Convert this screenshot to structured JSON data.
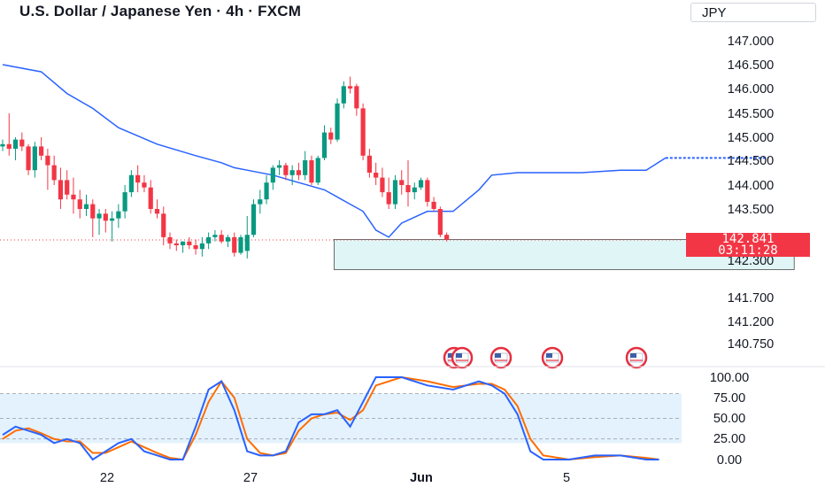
{
  "title": "U.S. Dollar / Japanese Yen · 4h · FXCM",
  "currency_selector": "JPY",
  "last_price": {
    "value": "142.841",
    "countdown": "03:11:28"
  },
  "colors": {
    "up": "#089981",
    "down": "#f23645",
    "trend_line": "#2962ff",
    "k_line": "#2962ff",
    "d_line": "#ff6d00",
    "zone_fill": "#e0f5f5",
    "band_fill": "#e3f2fd"
  },
  "chart_data": {
    "type": "candlestick",
    "price_axis": {
      "ticks": [
        "147.000",
        "146.500",
        "146.000",
        "145.500",
        "145.000",
        "144.500",
        "144.000",
        "143.500",
        "142.300",
        "141.700",
        "141.200",
        "140.750"
      ]
    },
    "x_axis": {
      "ticks": [
        "22",
        "27",
        "Jun",
        "5"
      ]
    },
    "candles": [
      [
        144.8,
        144.95,
        144.7,
        144.85
      ],
      [
        144.85,
        145.5,
        144.6,
        144.75
      ],
      [
        144.75,
        145.0,
        144.5,
        144.95
      ],
      [
        144.95,
        145.1,
        144.7,
        144.8
      ],
      [
        144.8,
        144.85,
        144.2,
        144.3
      ],
      [
        144.3,
        144.9,
        144.15,
        144.8
      ],
      [
        144.8,
        145.0,
        144.5,
        144.6
      ],
      [
        144.6,
        144.75,
        143.9,
        144.4
      ],
      [
        144.4,
        144.6,
        144.0,
        144.1
      ],
      [
        144.1,
        144.35,
        143.5,
        143.7
      ],
      [
        144.1,
        144.3,
        143.7,
        143.8
      ],
      [
        143.8,
        144.15,
        143.4,
        143.7
      ],
      [
        143.7,
        143.9,
        143.3,
        143.5
      ],
      [
        143.5,
        143.8,
        143.35,
        143.6
      ],
      [
        143.6,
        143.7,
        142.9,
        143.3
      ],
      [
        143.3,
        143.5,
        142.95,
        143.4
      ],
      [
        143.4,
        143.5,
        143.0,
        143.25
      ],
      [
        143.25,
        143.45,
        142.8,
        143.3
      ],
      [
        143.3,
        143.6,
        143.1,
        143.45
      ],
      [
        143.45,
        144.0,
        143.3,
        143.85
      ],
      [
        143.85,
        144.3,
        143.75,
        144.2
      ],
      [
        144.2,
        144.4,
        143.85,
        144.05
      ],
      [
        144.05,
        144.2,
        143.85,
        143.95
      ],
      [
        143.95,
        144.1,
        143.4,
        143.5
      ],
      [
        143.5,
        143.7,
        143.3,
        143.4
      ],
      [
        143.4,
        143.55,
        142.7,
        142.9
      ],
      [
        142.9,
        143.0,
        142.6,
        142.75
      ],
      [
        142.75,
        142.85,
        142.55,
        142.7
      ],
      [
        142.7,
        142.8,
        142.5,
        142.8
      ],
      [
        142.8,
        142.9,
        142.6,
        142.7
      ],
      [
        142.7,
        142.85,
        142.45,
        142.6
      ],
      [
        142.6,
        142.9,
        142.4,
        142.75
      ],
      [
        142.75,
        143.0,
        142.6,
        142.9
      ],
      [
        142.9,
        143.05,
        142.8,
        142.95
      ],
      [
        142.95,
        143.05,
        142.75,
        142.8
      ],
      [
        142.8,
        142.95,
        142.65,
        142.9
      ],
      [
        142.9,
        143.0,
        142.4,
        142.5
      ],
      [
        142.5,
        142.95,
        142.45,
        142.9
      ],
      [
        142.55,
        143.35,
        142.35,
        142.95
      ],
      [
        142.95,
        143.7,
        142.9,
        143.6
      ],
      [
        143.6,
        143.9,
        143.4,
        143.7
      ],
      [
        143.7,
        144.2,
        143.6,
        144.05
      ],
      [
        144.05,
        144.4,
        143.9,
        144.35
      ],
      [
        144.35,
        144.5,
        144.2,
        144.4
      ],
      [
        144.4,
        144.45,
        144.1,
        144.2
      ],
      [
        144.2,
        144.4,
        144.0,
        144.3
      ],
      [
        144.3,
        144.45,
        144.1,
        144.2
      ],
      [
        144.2,
        144.7,
        144.1,
        144.5
      ],
      [
        144.5,
        144.6,
        144.0,
        144.05
      ],
      [
        144.05,
        144.6,
        144.0,
        144.55
      ],
      [
        144.55,
        145.25,
        144.5,
        145.1
      ],
      [
        145.1,
        145.2,
        144.85,
        144.95
      ],
      [
        144.95,
        145.8,
        144.9,
        145.7
      ],
      [
        145.7,
        146.15,
        145.6,
        146.05
      ],
      [
        146.05,
        146.25,
        145.9,
        146.0
      ],
      [
        146.05,
        146.1,
        145.45,
        145.6
      ],
      [
        145.6,
        145.7,
        144.5,
        144.6
      ],
      [
        144.6,
        144.75,
        144.15,
        144.25
      ],
      [
        144.25,
        144.45,
        144.0,
        144.15
      ],
      [
        144.15,
        144.35,
        143.75,
        143.85
      ],
      [
        143.85,
        144.15,
        143.5,
        143.6
      ],
      [
        143.6,
        144.2,
        143.5,
        144.1
      ],
      [
        144.1,
        144.3,
        143.8,
        144.0
      ],
      [
        144.0,
        144.5,
        143.55,
        143.85
      ],
      [
        143.85,
        144.05,
        143.7,
        143.95
      ],
      [
        143.95,
        144.15,
        143.9,
        144.1
      ],
      [
        144.1,
        144.15,
        143.55,
        143.65
      ],
      [
        143.65,
        143.75,
        143.45,
        143.5
      ],
      [
        143.5,
        143.55,
        142.9,
        142.95
      ],
      [
        142.95,
        143.0,
        142.8,
        142.85
      ]
    ],
    "trend_line": [
      [
        0,
        146.5
      ],
      [
        6,
        146.35
      ],
      [
        10,
        145.9
      ],
      [
        14,
        145.6
      ],
      [
        18,
        145.2
      ],
      [
        24,
        144.85
      ],
      [
        30,
        144.6
      ],
      [
        34,
        144.45
      ],
      [
        36,
        144.35
      ],
      [
        38,
        144.3
      ],
      [
        42,
        144.2
      ],
      [
        46,
        144.05
      ],
      [
        50,
        143.9
      ],
      [
        54,
        143.6
      ],
      [
        56,
        143.45
      ],
      [
        58,
        143.05
      ],
      [
        60,
        142.9
      ],
      [
        62,
        143.2
      ],
      [
        66,
        143.45
      ],
      [
        70,
        143.45
      ],
      [
        74,
        143.9
      ],
      [
        76,
        144.2
      ],
      [
        80,
        144.25
      ],
      [
        90,
        144.25
      ],
      [
        96,
        144.3
      ],
      [
        100,
        144.3
      ],
      [
        103,
        144.55
      ]
    ],
    "trend_projection": {
      "x_start": 103,
      "x_end": 119,
      "value": 144.55
    },
    "zone": {
      "x_start": 51.5,
      "x_end": 123,
      "top": 142.85,
      "bottom": 142.15
    },
    "event_markers": 5,
    "stochastic": {
      "ticks": [
        "100.00",
        "75.00",
        "50.00",
        "25.00",
        "0.00"
      ],
      "band": [
        20,
        80
      ],
      "k": [
        [
          0,
          30
        ],
        [
          2,
          40
        ],
        [
          4,
          35
        ],
        [
          6,
          30
        ],
        [
          8,
          20
        ],
        [
          10,
          25
        ],
        [
          12,
          20
        ],
        [
          14,
          0
        ],
        [
          16,
          10
        ],
        [
          18,
          20
        ],
        [
          20,
          25
        ],
        [
          22,
          10
        ],
        [
          24,
          5
        ],
        [
          26,
          0
        ],
        [
          28,
          0
        ],
        [
          30,
          40
        ],
        [
          32,
          85
        ],
        [
          34,
          95
        ],
        [
          36,
          60
        ],
        [
          38,
          10
        ],
        [
          40,
          5
        ],
        [
          42,
          5
        ],
        [
          44,
          10
        ],
        [
          46,
          45
        ],
        [
          48,
          55
        ],
        [
          50,
          55
        ],
        [
          52,
          60
        ],
        [
          54,
          40
        ],
        [
          56,
          70
        ],
        [
          58,
          100
        ],
        [
          62,
          100
        ],
        [
          66,
          90
        ],
        [
          70,
          85
        ],
        [
          74,
          95
        ],
        [
          76,
          90
        ],
        [
          78,
          80
        ],
        [
          80,
          55
        ],
        [
          82,
          10
        ],
        [
          84,
          0
        ],
        [
          88,
          0
        ],
        [
          92,
          5
        ],
        [
          96,
          5
        ],
        [
          100,
          0
        ],
        [
          102,
          0
        ]
      ],
      "d": [
        [
          0,
          25
        ],
        [
          2,
          35
        ],
        [
          4,
          38
        ],
        [
          6,
          32
        ],
        [
          8,
          25
        ],
        [
          10,
          22
        ],
        [
          12,
          22
        ],
        [
          14,
          8
        ],
        [
          16,
          8
        ],
        [
          18,
          15
        ],
        [
          20,
          22
        ],
        [
          22,
          15
        ],
        [
          24,
          8
        ],
        [
          26,
          2
        ],
        [
          28,
          0
        ],
        [
          30,
          30
        ],
        [
          32,
          70
        ],
        [
          34,
          95
        ],
        [
          36,
          75
        ],
        [
          38,
          25
        ],
        [
          40,
          8
        ],
        [
          42,
          5
        ],
        [
          44,
          8
        ],
        [
          46,
          35
        ],
        [
          48,
          50
        ],
        [
          50,
          55
        ],
        [
          52,
          57
        ],
        [
          54,
          48
        ],
        [
          56,
          60
        ],
        [
          58,
          90
        ],
        [
          62,
          100
        ],
        [
          66,
          95
        ],
        [
          70,
          88
        ],
        [
          74,
          92
        ],
        [
          76,
          92
        ],
        [
          78,
          85
        ],
        [
          80,
          65
        ],
        [
          82,
          25
        ],
        [
          84,
          5
        ],
        [
          88,
          0
        ],
        [
          92,
          3
        ],
        [
          96,
          5
        ],
        [
          100,
          2
        ],
        [
          102,
          0
        ]
      ]
    }
  }
}
